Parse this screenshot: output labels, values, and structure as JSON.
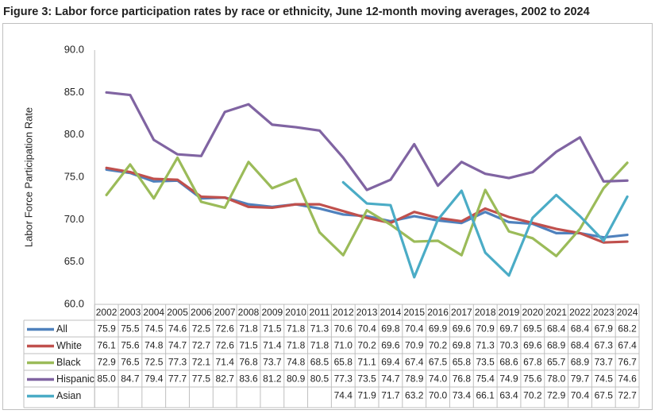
{
  "chart_data": {
    "type": "line",
    "title": "Figure 3: Labor force participation rates by race or ethnicity, June 12-month moving averages, 2002 to 2024",
    "y_label": "Labor Force Participation Rate",
    "categories": [
      "2002",
      "2003",
      "2004",
      "2005",
      "2006",
      "2007",
      "2008",
      "2009",
      "2010",
      "2011",
      "2012",
      "2013",
      "2014",
      "2015",
      "2016",
      "2017",
      "2018",
      "2019",
      "2020",
      "2021",
      "2022",
      "2023",
      "2024"
    ],
    "ylim": [
      60,
      90
    ],
    "yticks": [
      {
        "value": 60,
        "label": "60.0"
      },
      {
        "value": 65,
        "label": "65.0"
      },
      {
        "value": 70,
        "label": "70.0"
      },
      {
        "value": 75,
        "label": "75.0"
      },
      {
        "value": 80,
        "label": "80.0"
      },
      {
        "value": 85,
        "label": "85.0"
      },
      {
        "value": 90,
        "label": "90.0"
      }
    ],
    "grid": false,
    "series": [
      {
        "name": "All",
        "color": "#4f81bd",
        "values": [
          75.9,
          75.5,
          74.5,
          74.6,
          72.5,
          72.6,
          71.8,
          71.5,
          71.8,
          71.3,
          70.6,
          70.4,
          69.8,
          70.4,
          69.9,
          69.6,
          70.9,
          69.7,
          69.5,
          68.4,
          68.4,
          67.9,
          68.2
        ],
        "value_labels": [
          "75.9",
          "75.5",
          "74.5",
          "74.6",
          "72.5",
          "72.6",
          "71.8",
          "71.5",
          "71.8",
          "71.3",
          "70.6",
          "70.4",
          "69.8",
          "70.4",
          "69.9",
          "69.6",
          "70.9",
          "69.7",
          "69.5",
          "68.4",
          "68.4",
          "67.9",
          "68.2"
        ]
      },
      {
        "name": "White",
        "color": "#c0504d",
        "values": [
          76.1,
          75.6,
          74.8,
          74.7,
          72.7,
          72.6,
          71.5,
          71.4,
          71.8,
          71.8,
          71.0,
          70.2,
          69.6,
          70.9,
          70.2,
          69.8,
          71.3,
          70.3,
          69.6,
          68.9,
          68.4,
          67.3,
          67.4
        ],
        "value_labels": [
          "76.1",
          "75.6",
          "74.8",
          "74.7",
          "72.7",
          "72.6",
          "71.5",
          "71.4",
          "71.8",
          "71.8",
          "71.0",
          "70.2",
          "69.6",
          "70.9",
          "70.2",
          "69.8",
          "71.3",
          "70.3",
          "69.6",
          "68.9",
          "68.4",
          "67.3",
          "67.4"
        ]
      },
      {
        "name": "Black",
        "color": "#9bbb59",
        "values": [
          72.9,
          76.5,
          72.5,
          77.3,
          72.1,
          71.4,
          76.8,
          73.7,
          74.8,
          68.5,
          65.8,
          71.1,
          69.4,
          67.4,
          67.5,
          65.8,
          73.5,
          68.6,
          67.8,
          65.7,
          68.9,
          73.7,
          76.7
        ],
        "value_labels": [
          "72.9",
          "76.5",
          "72.5",
          "77.3",
          "72.1",
          "71.4",
          "76.8",
          "73.7",
          "74.8",
          "68.5",
          "65.8",
          "71.1",
          "69.4",
          "67.4",
          "67.5",
          "65.8",
          "73.5",
          "68.6",
          "67.8",
          "65.7",
          "68.9",
          "73.7",
          "76.7"
        ]
      },
      {
        "name": "Hispanic",
        "color": "#8064a2",
        "values": [
          85.0,
          84.7,
          79.4,
          77.7,
          77.5,
          82.7,
          83.6,
          81.2,
          80.9,
          80.5,
          77.3,
          73.5,
          74.7,
          78.9,
          74.0,
          76.8,
          75.4,
          74.9,
          75.6,
          78.0,
          79.7,
          74.5,
          74.6
        ],
        "value_labels": [
          "85.0",
          "84.7",
          "79.4",
          "77.7",
          "77.5",
          "82.7",
          "83.6",
          "81.2",
          "80.9",
          "80.5",
          "77.3",
          "73.5",
          "74.7",
          "78.9",
          "74.0",
          "76.8",
          "75.4",
          "74.9",
          "75.6",
          "78.0",
          "79.7",
          "74.5",
          "74.6"
        ]
      },
      {
        "name": "Asian",
        "color": "#4bacc6",
        "values": [
          null,
          null,
          null,
          null,
          null,
          null,
          null,
          null,
          null,
          null,
          74.4,
          71.9,
          71.7,
          63.2,
          70.0,
          73.4,
          66.1,
          63.4,
          70.2,
          72.9,
          70.4,
          67.5,
          72.7
        ],
        "value_labels": [
          null,
          null,
          null,
          null,
          null,
          null,
          null,
          null,
          null,
          null,
          "74.4",
          "71.9",
          "71.7",
          "63.2",
          "70.0",
          "73.4",
          "66.1",
          "63.4",
          "70.2",
          "72.9",
          "70.4",
          "67.5",
          "72.7"
        ]
      }
    ]
  }
}
